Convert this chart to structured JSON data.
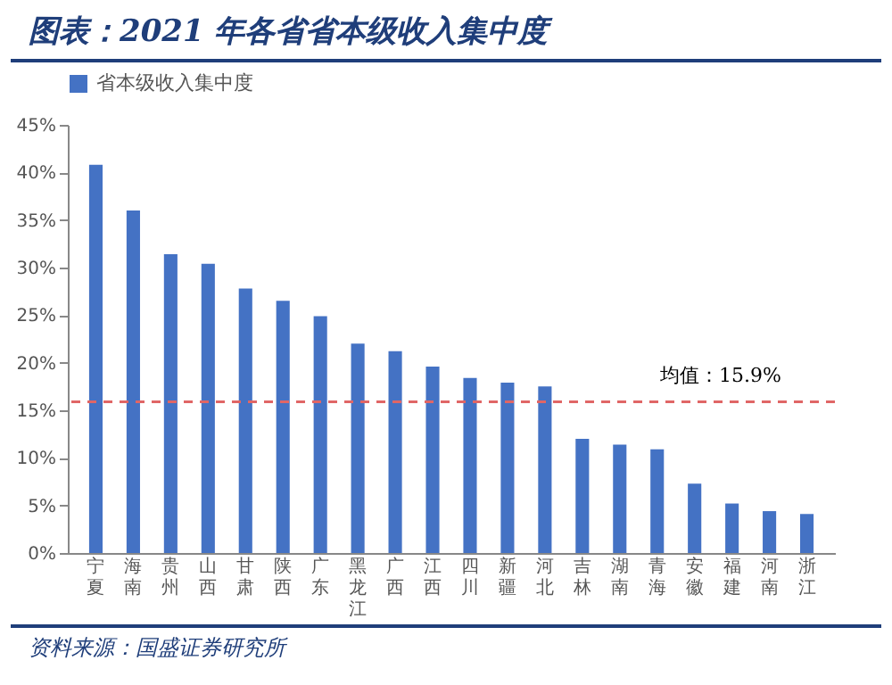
{
  "chart_data": {
    "type": "bar",
    "title": "图表：2021 年各省省本级收入集中度",
    "categories": [
      "宁夏",
      "海南",
      "贵州",
      "山西",
      "甘肃",
      "陕西",
      "广东",
      "黑龙江",
      "广西",
      "江西",
      "四川",
      "新疆",
      "河北",
      "吉林",
      "湖南",
      "青海",
      "安徽",
      "福建",
      "河南",
      "浙江"
    ],
    "series": [
      {
        "name": "省本级收入集中度",
        "color": "#4472c4",
        "values": [
          40.8,
          36.0,
          31.4,
          30.4,
          27.8,
          26.5,
          24.9,
          22.0,
          21.2,
          19.6,
          18.4,
          17.9,
          17.5,
          12.0,
          11.4,
          10.9,
          7.3,
          5.2,
          4.4,
          4.1
        ]
      }
    ],
    "ylim": [
      0,
      45
    ],
    "yticks": [
      {
        "value": 0,
        "label": "0%"
      },
      {
        "value": 5,
        "label": "5%"
      },
      {
        "value": 10,
        "label": "10%"
      },
      {
        "value": 15,
        "label": "15%"
      },
      {
        "value": 20,
        "label": "20%"
      },
      {
        "value": 25,
        "label": "25%"
      },
      {
        "value": 30,
        "label": "30%"
      },
      {
        "value": 35,
        "label": "35%"
      },
      {
        "value": 40,
        "label": "40%"
      },
      {
        "value": 45,
        "label": "45%"
      }
    ],
    "ref_lines": [
      {
        "axis": "y",
        "value": 15.9,
        "label": "均值：15.9%",
        "color": "#e06666",
        "line_style": "dashed"
      }
    ],
    "grid": false,
    "legend": "top",
    "annotations": [
      "资料来源：国盛证券研究所"
    ]
  }
}
